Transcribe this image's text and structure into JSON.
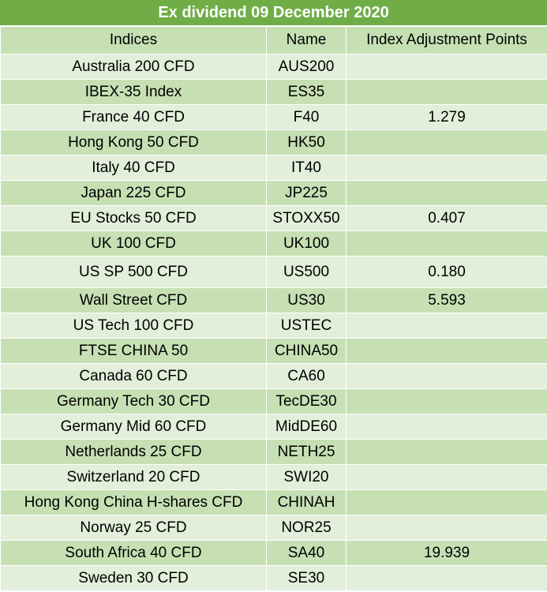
{
  "title": "Ex dividend 09 December 2020",
  "columns": {
    "indices": "Indices",
    "name": "Name",
    "adjustment": "Index Adjustment Points"
  },
  "rows": [
    {
      "index": "Australia 200 CFD",
      "name": "AUS200",
      "points": ""
    },
    {
      "index": "IBEX-35 Index",
      "name": "ES35",
      "points": ""
    },
    {
      "index": "France 40 CFD",
      "name": "F40",
      "points": "1.279"
    },
    {
      "index": "Hong Kong 50 CFD",
      "name": "HK50",
      "points": ""
    },
    {
      "index": "Italy 40 CFD",
      "name": "IT40",
      "points": ""
    },
    {
      "index": "Japan 225 CFD",
      "name": "JP225",
      "points": ""
    },
    {
      "index": "EU Stocks 50 CFD",
      "name": "STOXX50",
      "points": "0.407"
    },
    {
      "index": "UK 100 CFD",
      "name": "UK100",
      "points": ""
    },
    {
      "index": "US SP 500 CFD",
      "name": "US500",
      "points": "0.180"
    },
    {
      "index": "Wall Street CFD",
      "name": "US30",
      "points": "5.593"
    },
    {
      "index": "US Tech 100 CFD",
      "name": "USTEC",
      "points": ""
    },
    {
      "index": "FTSE CHINA 50",
      "name": "CHINA50",
      "points": ""
    },
    {
      "index": "Canada 60 CFD",
      "name": "CA60",
      "points": ""
    },
    {
      "index": "Germany Tech 30 CFD",
      "name": "TecDE30",
      "points": ""
    },
    {
      "index": "Germany Mid 60 CFD",
      "name": "MidDE60",
      "points": ""
    },
    {
      "index": "Netherlands 25 CFD",
      "name": "NETH25",
      "points": ""
    },
    {
      "index": "Switzerland 20 CFD",
      "name": "SWI20",
      "points": ""
    },
    {
      "index": "Hong Kong China H-shares CFD",
      "name": "CHINAH",
      "points": ""
    },
    {
      "index": "Norway 25 CFD",
      "name": "NOR25",
      "points": ""
    },
    {
      "index": "South Africa 40 CFD",
      "name": "SA40",
      "points": "19.939"
    },
    {
      "index": "Sweden 30 CFD",
      "name": "SE30",
      "points": ""
    }
  ],
  "colors": {
    "title_bg": "#70ad47",
    "title_text": "#ffffff",
    "row_light": "#e2efda",
    "row_dark": "#c6e0b4"
  }
}
